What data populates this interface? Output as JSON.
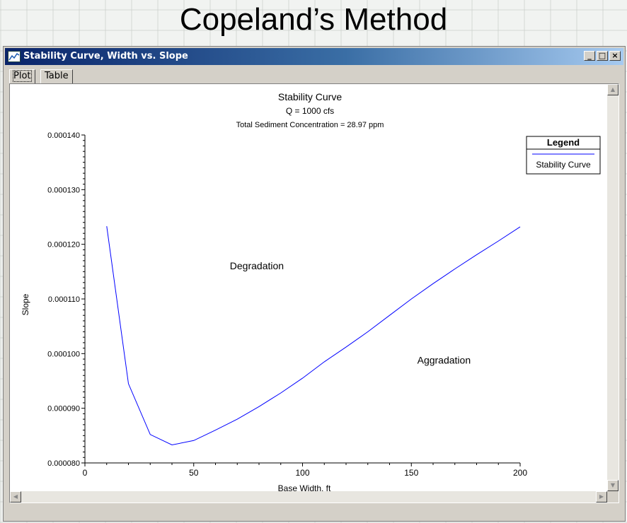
{
  "slide": {
    "title": "Copeland’s Method"
  },
  "window": {
    "title": "Stability Curve, Width vs. Slope",
    "controls": {
      "minimize": "_",
      "maximize": "□",
      "close": "×"
    }
  },
  "tabs": [
    {
      "label": "Plot",
      "active": true
    },
    {
      "label": "Table",
      "active": false
    }
  ],
  "chart_data": {
    "type": "line",
    "title": "Stability Curve",
    "subtitle1": "Q = 1000 cfs",
    "subtitle2": "Total Sediment Concentration = 28.97 ppm",
    "xlabel": "Base Width, ft",
    "ylabel": "Slope",
    "xlim": [
      0,
      200
    ],
    "ylim": [
      8e-05,
      0.00014
    ],
    "xticks": [
      "0",
      "50",
      "100",
      "150",
      "200"
    ],
    "yticks": [
      "0.000080",
      "0.000090",
      "0.000100",
      "0.000110",
      "0.000120",
      "0.000130",
      "0.000140"
    ],
    "legend": {
      "title": "Legend",
      "position": "top-right"
    },
    "series": [
      {
        "name": "Stability Curve",
        "color": "#0000ff",
        "x": [
          10,
          20,
          30,
          40,
          50,
          60,
          70,
          80,
          90,
          100,
          110,
          120,
          130,
          140,
          150,
          160,
          170,
          180,
          190,
          200
        ],
        "y": [
          0.0001233,
          9.45e-05,
          8.52e-05,
          8.33e-05,
          8.41e-05,
          8.6e-05,
          8.8e-05,
          9.03e-05,
          9.28e-05,
          9.55e-05,
          9.85e-05,
          0.0001012,
          0.000104,
          0.000107,
          0.00011,
          0.0001128,
          0.0001155,
          0.0001181,
          0.0001206,
          0.0001232
        ]
      }
    ],
    "annotations": [
      {
        "text": "Degradation",
        "x": 79,
        "y": 0.0001154
      },
      {
        "text": "Aggradation",
        "x": 165,
        "y": 9.82e-05
      }
    ]
  }
}
